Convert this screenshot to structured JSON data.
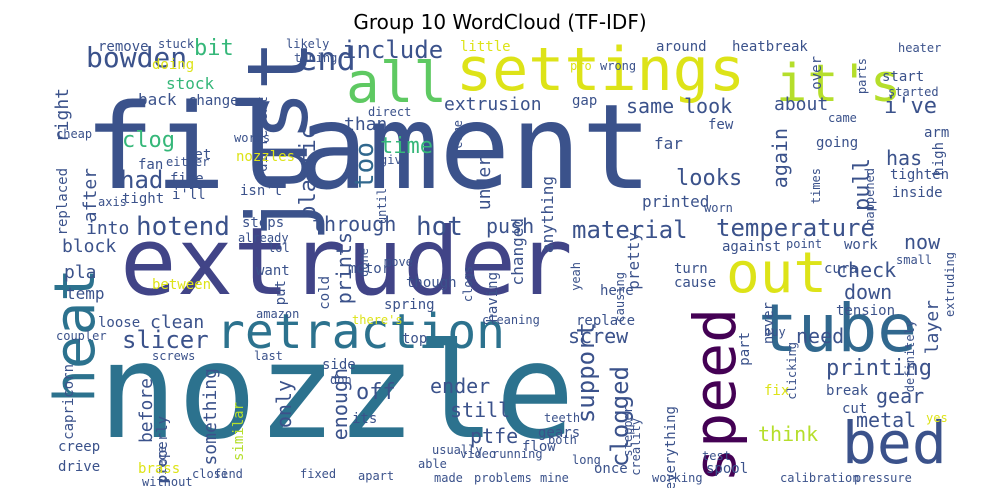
{
  "title": "Group 10 WordCloud (TF-IDF)",
  "words": [
    {
      "text": "filament",
      "color": "#3b528b"
    },
    {
      "text": "nozzle",
      "color": "#2c728e"
    },
    {
      "text": "extruder",
      "color": "#414487"
    },
    {
      "text": "settings",
      "color": "#dde318"
    },
    {
      "text": "just",
      "color": "#3b528b"
    },
    {
      "text": "it's",
      "color": "#b5de2b"
    },
    {
      "text": "all",
      "color": "#5ec962"
    },
    {
      "text": "heat",
      "color": "#2c728e"
    },
    {
      "text": "retraction",
      "color": "#2c728e"
    },
    {
      "text": "tube",
      "color": "#31688e"
    },
    {
      "text": "bed",
      "color": "#3b528b"
    },
    {
      "text": "out",
      "color": "#dde318"
    },
    {
      "text": "speed",
      "color": "#440154"
    },
    {
      "text": "end",
      "color": "#3b528b"
    },
    {
      "text": "include",
      "color": "#3b528b"
    },
    {
      "text": "bowden",
      "color": "#3b528b"
    },
    {
      "text": "bit",
      "color": "#35b779"
    },
    {
      "text": "hotend",
      "color": "#3b528b"
    },
    {
      "text": "temperature",
      "color": "#3b528b"
    },
    {
      "text": "material",
      "color": "#3b528b"
    },
    {
      "text": "hot",
      "color": "#3b528b"
    },
    {
      "text": "slicer",
      "color": "#3b528b"
    },
    {
      "text": "clog",
      "color": "#35b779"
    },
    {
      "text": "had",
      "color": "#3b528b"
    },
    {
      "text": "too",
      "color": "#31688e"
    },
    {
      "text": "plastic",
      "color": "#3b528b"
    },
    {
      "text": "time",
      "color": "#35b779"
    },
    {
      "text": "extrusion",
      "color": "#3b528b"
    },
    {
      "text": "same",
      "color": "#3b528b"
    },
    {
      "text": "look",
      "color": "#3b528b"
    },
    {
      "text": "about",
      "color": "#3b528b"
    },
    {
      "text": "i've",
      "color": "#3b528b"
    },
    {
      "text": "has",
      "color": "#3b528b"
    },
    {
      "text": "again",
      "color": "#3b528b"
    },
    {
      "text": "pull",
      "color": "#3b528b"
    },
    {
      "text": "looks",
      "color": "#3b528b"
    },
    {
      "text": "check",
      "color": "#3b528b"
    },
    {
      "text": "now",
      "color": "#3b528b"
    },
    {
      "text": "down",
      "color": "#3b528b"
    },
    {
      "text": "layer",
      "color": "#3b528b"
    },
    {
      "text": "gear",
      "color": "#3b528b"
    },
    {
      "text": "printing",
      "color": "#3b528b"
    },
    {
      "text": "metal",
      "color": "#3b528b"
    },
    {
      "text": "support",
      "color": "#3b528b"
    },
    {
      "text": "clogged",
      "color": "#3b528b"
    },
    {
      "text": "push",
      "color": "#3b528b"
    },
    {
      "text": "through",
      "color": "#3b528b"
    },
    {
      "text": "prints",
      "color": "#3b528b"
    },
    {
      "text": "enough",
      "color": "#3b528b"
    },
    {
      "text": "off",
      "color": "#3b528b"
    },
    {
      "text": "ender",
      "color": "#3b528b"
    },
    {
      "text": "still",
      "color": "#3b528b"
    },
    {
      "text": "ptfe",
      "color": "#3b528b"
    },
    {
      "text": "only",
      "color": "#3b528b"
    },
    {
      "text": "something",
      "color": "#3b528b"
    },
    {
      "text": "before",
      "color": "#3b528b"
    },
    {
      "text": "clean",
      "color": "#3b528b"
    },
    {
      "text": "screw",
      "color": "#3b528b"
    },
    {
      "text": "need",
      "color": "#3b528b"
    },
    {
      "text": "think",
      "color": "#b5de2b"
    },
    {
      "text": "block",
      "color": "#3b528b"
    },
    {
      "text": "pla",
      "color": "#3b528b"
    },
    {
      "text": "into",
      "color": "#3b528b"
    },
    {
      "text": "after",
      "color": "#3b528b"
    },
    {
      "text": "right",
      "color": "#3b528b"
    },
    {
      "text": "temp",
      "color": "#3b528b"
    },
    {
      "text": "back",
      "color": "#3b528b"
    },
    {
      "text": "stock",
      "color": "#35b779"
    },
    {
      "text": "than",
      "color": "#3b528b"
    },
    {
      "text": "under",
      "color": "#3b528b"
    },
    {
      "text": "remove",
      "color": "#3b528b"
    },
    {
      "text": "around",
      "color": "#3b528b"
    },
    {
      "text": "heatbreak",
      "color": "#3b528b"
    },
    {
      "text": "parts",
      "color": "#3b528b"
    },
    {
      "text": "heater",
      "color": "#3b528b"
    },
    {
      "text": "start",
      "color": "#3b528b"
    },
    {
      "text": "over",
      "color": "#3b528b"
    },
    {
      "text": "arm",
      "color": "#3b528b"
    },
    {
      "text": "high",
      "color": "#3b528b"
    },
    {
      "text": "tighten",
      "color": "#3b528b"
    },
    {
      "text": "inside",
      "color": "#3b528b"
    },
    {
      "text": "going",
      "color": "#3b528b"
    },
    {
      "text": "far",
      "color": "#3b528b"
    },
    {
      "text": "few",
      "color": "#3b528b"
    },
    {
      "text": "gap",
      "color": "#3b528b"
    },
    {
      "text": "little",
      "color": "#dde318"
    },
    {
      "text": "pro",
      "color": "#dde318"
    },
    {
      "text": "wrong",
      "color": "#3b528b"
    },
    {
      "text": "stuck",
      "color": "#3b528b"
    },
    {
      "text": "likely",
      "color": "#3b528b"
    },
    {
      "text": "tubing",
      "color": "#3b528b"
    },
    {
      "text": "doing",
      "color": "#dde318"
    },
    {
      "text": "change",
      "color": "#3b528b"
    },
    {
      "text": "different",
      "color": "#3b528b"
    },
    {
      "text": "nozzles",
      "color": "#dde318"
    },
    {
      "text": "fan",
      "color": "#3b528b"
    },
    {
      "text": "fine",
      "color": "#3b528b"
    },
    {
      "text": "set",
      "color": "#3b528b"
    },
    {
      "text": "i'll",
      "color": "#3b528b"
    },
    {
      "text": "tight",
      "color": "#3b528b"
    },
    {
      "text": "isn't",
      "color": "#3b528b"
    },
    {
      "text": "steps",
      "color": "#3b528b"
    },
    {
      "text": "already",
      "color": "#3b528b"
    },
    {
      "text": "replaced",
      "color": "#3b528b"
    },
    {
      "text": "cheap",
      "color": "#3b528b"
    },
    {
      "text": "works",
      "color": "#3b528b"
    },
    {
      "text": "either",
      "color": "#3b528b"
    },
    {
      "text": "axis",
      "color": "#3b528b"
    },
    {
      "text": "until",
      "color": "#3b528b"
    },
    {
      "text": "give",
      "color": "#3b528b"
    },
    {
      "text": "direct",
      "color": "#3b528b"
    },
    {
      "text": "come",
      "color": "#3b528b"
    },
    {
      "text": "changed",
      "color": "#3b528b"
    },
    {
      "text": "anything",
      "color": "#3b528b"
    },
    {
      "text": "printed",
      "color": "#3b528b"
    },
    {
      "text": "worn",
      "color": "#3b528b"
    },
    {
      "text": "against",
      "color": "#3b528b"
    },
    {
      "text": "point",
      "color": "#3b528b"
    },
    {
      "text": "small",
      "color": "#3b528b"
    },
    {
      "text": "work",
      "color": "#3b528b"
    },
    {
      "text": "cura",
      "color": "#3b528b"
    },
    {
      "text": "turn",
      "color": "#3b528b"
    },
    {
      "text": "cause",
      "color": "#3b528b"
    },
    {
      "text": "here",
      "color": "#3b528b"
    },
    {
      "text": "pretty",
      "color": "#3b528b"
    },
    {
      "text": "want",
      "color": "#3b528b"
    },
    {
      "text": "between",
      "color": "#dde318"
    },
    {
      "text": "put",
      "color": "#3b528b"
    },
    {
      "text": "cold",
      "color": "#3b528b"
    },
    {
      "text": "motor",
      "color": "#3b528b"
    },
    {
      "text": "though",
      "color": "#3b528b"
    },
    {
      "text": "spring",
      "color": "#3b528b"
    },
    {
      "text": "move",
      "color": "#3b528b"
    },
    {
      "text": "done",
      "color": "#3b528b"
    },
    {
      "text": "clogs",
      "color": "#3b528b"
    },
    {
      "text": "having",
      "color": "#3b528b"
    },
    {
      "text": "yeah",
      "color": "#3b528b"
    },
    {
      "text": "causing",
      "color": "#3b528b"
    },
    {
      "text": "buy",
      "color": "#3b528b"
    },
    {
      "text": "tension",
      "color": "#3b528b"
    },
    {
      "text": "happened",
      "color": "#3b528b"
    },
    {
      "text": "extruding",
      "color": "#3b528b"
    },
    {
      "text": "times",
      "color": "#3b528b"
    },
    {
      "text": "came",
      "color": "#3b528b"
    },
    {
      "text": "started",
      "color": "#3b528b"
    },
    {
      "text": "coupler",
      "color": "#3b528b"
    },
    {
      "text": "loose",
      "color": "#3b528b"
    },
    {
      "text": "amazon",
      "color": "#3b528b"
    },
    {
      "text": "there's",
      "color": "#dde318"
    },
    {
      "text": "cleaning",
      "color": "#3b528b"
    },
    {
      "text": "replace",
      "color": "#3b528b"
    },
    {
      "text": "top",
      "color": "#3b528b"
    },
    {
      "text": "part",
      "color": "#3b528b"
    },
    {
      "text": "never",
      "color": "#3b528b"
    },
    {
      "text": "clicking",
      "color": "#3b528b"
    },
    {
      "text": "definitely",
      "color": "#3b528b"
    },
    {
      "text": "capricorn",
      "color": "#3b528b"
    },
    {
      "text": "screws",
      "color": "#3b528b"
    },
    {
      "text": "last",
      "color": "#3b528b"
    },
    {
      "text": "side",
      "color": "#3b528b"
    },
    {
      "text": "don",
      "color": "#3b528b"
    },
    {
      "text": "its",
      "color": "#3b528b"
    },
    {
      "text": "video",
      "color": "#3b528b"
    },
    {
      "text": "running",
      "color": "#3b528b"
    },
    {
      "text": "stepper",
      "color": "#3b528b"
    },
    {
      "text": "fix",
      "color": "#dde318"
    },
    {
      "text": "break",
      "color": "#3b528b"
    },
    {
      "text": "cut",
      "color": "#3b528b"
    },
    {
      "text": "yes",
      "color": "#dde318"
    },
    {
      "text": "similar",
      "color": "#b5de2b"
    },
    {
      "text": "properly",
      "color": "#3b528b"
    },
    {
      "text": "teeth",
      "color": "#3b528b"
    },
    {
      "text": "gears",
      "color": "#3b528b"
    },
    {
      "text": "both",
      "color": "#3b528b"
    },
    {
      "text": "everything",
      "color": "#3b528b"
    },
    {
      "text": "creality",
      "color": "#3b528b"
    },
    {
      "text": "flow",
      "color": "#3b528b"
    },
    {
      "text": "long",
      "color": "#3b528b"
    },
    {
      "text": "piece",
      "color": "#3b528b"
    },
    {
      "text": "creep",
      "color": "#3b528b"
    },
    {
      "text": "drive",
      "color": "#3b528b"
    },
    {
      "text": "brass",
      "color": "#dde318"
    },
    {
      "text": "able",
      "color": "#3b528b"
    },
    {
      "text": "usually",
      "color": "#3b528b"
    },
    {
      "text": "once",
      "color": "#3b528b"
    },
    {
      "text": "test",
      "color": "#3b528b"
    },
    {
      "text": "spool",
      "color": "#3b528b"
    },
    {
      "text": "without",
      "color": "#3b528b"
    },
    {
      "text": "close",
      "color": "#3b528b"
    },
    {
      "text": "find",
      "color": "#3b528b"
    },
    {
      "text": "fixed",
      "color": "#3b528b"
    },
    {
      "text": "apart",
      "color": "#3b528b"
    },
    {
      "text": "made",
      "color": "#3b528b"
    },
    {
      "text": "problems",
      "color": "#3b528b"
    },
    {
      "text": "mine",
      "color": "#3b528b"
    },
    {
      "text": "working",
      "color": "#3b528b"
    },
    {
      "text": "calibration",
      "color": "#3b528b"
    },
    {
      "text": "pressure",
      "color": "#3b528b"
    },
    {
      "text": "lol",
      "color": "#3b528b"
    }
  ]
}
